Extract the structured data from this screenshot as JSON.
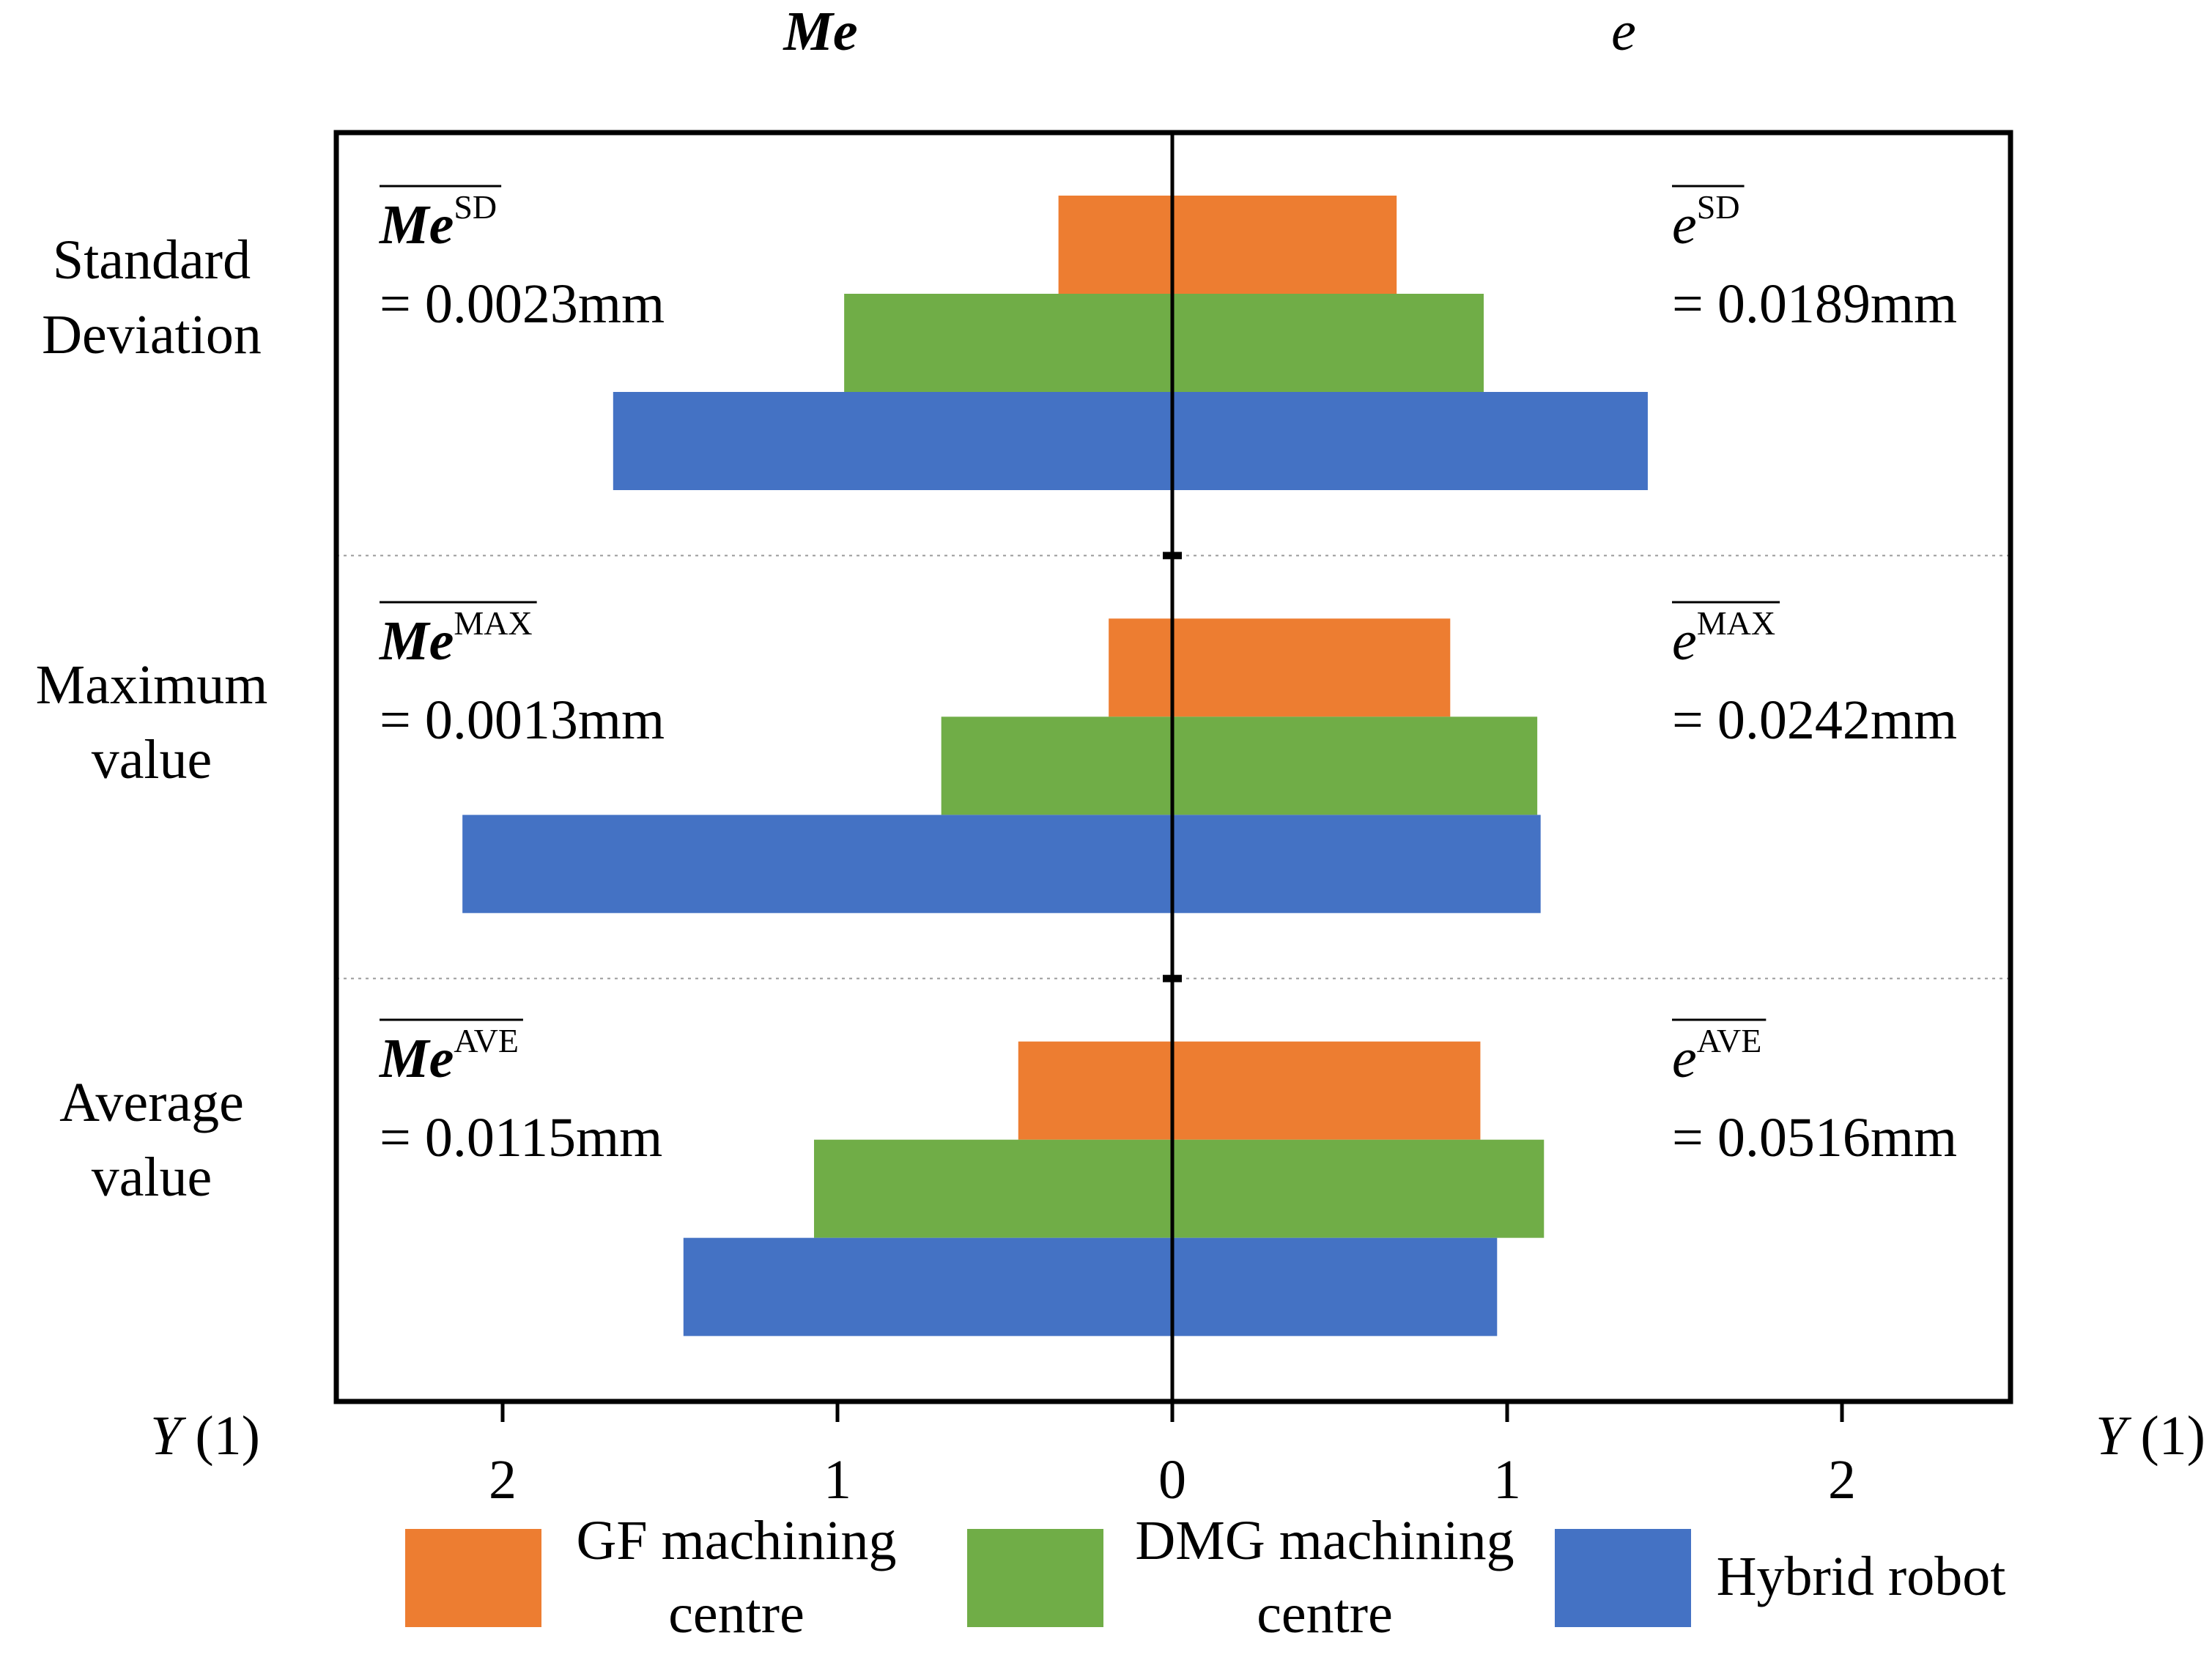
{
  "chart_data": {
    "type": "bar",
    "orientation": "horizontal",
    "layout": "diverging",
    "left_panel_title": "Me",
    "right_panel_title": "e",
    "categories": [
      "Standard Deviation",
      "Maximum value",
      "Average value"
    ],
    "category_label_lines": [
      [
        "Standard",
        "Deviation"
      ],
      [
        "Maximum",
        "value"
      ],
      [
        "Average",
        "value"
      ]
    ],
    "axis_label_left": "Y (1)",
    "axis_label_right": "Y (1)",
    "x_ticks": [
      2,
      1,
      0,
      1,
      2
    ],
    "xlim": [
      -2.5,
      2.5
    ],
    "grid": false,
    "legend_position": "bottom",
    "series": [
      {
        "name": "GF machining centre",
        "legend_lines": [
          "GF machining",
          "centre"
        ],
        "color": "#ED7D31",
        "me_values": [
          0.34,
          0.19,
          0.46
        ],
        "e_values": [
          0.67,
          0.83,
          0.92
        ]
      },
      {
        "name": "DMG machining centre",
        "legend_lines": [
          "DMG machining",
          "centre"
        ],
        "color": "#70AD47",
        "me_values": [
          0.98,
          0.69,
          1.07
        ],
        "e_values": [
          0.93,
          1.09,
          1.11
        ]
      },
      {
        "name": "Hybrid robot",
        "legend_lines": [
          "Hybrid robot"
        ],
        "color": "#4472C4",
        "me_values": [
          1.67,
          2.12,
          1.46
        ],
        "e_values": [
          1.42,
          1.1,
          0.97
        ]
      }
    ],
    "annotations_left": [
      {
        "base": "Me",
        "sup": "SD",
        "value": "= 0.0023mm"
      },
      {
        "base": "Me",
        "sup": "MAX",
        "value": "= 0.0013mm"
      },
      {
        "base": "Me",
        "sup": "AVE",
        "value": "= 0.0115mm"
      }
    ],
    "annotations_right": [
      {
        "base": "e",
        "sup": "SD",
        "value": "= 0.0189mm"
      },
      {
        "base": "e",
        "sup": "MAX",
        "value": "= 0.0242mm"
      },
      {
        "base": "e",
        "sup": "AVE",
        "value": "= 0.0516mm"
      }
    ]
  }
}
